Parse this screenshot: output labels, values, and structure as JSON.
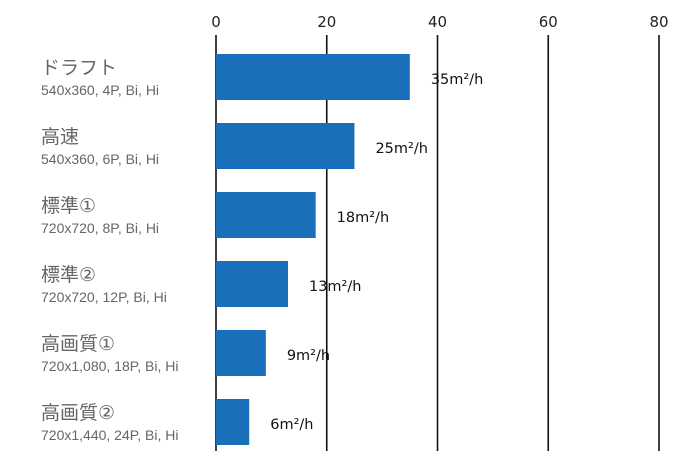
{
  "chart_data": {
    "type": "bar",
    "orientation": "horizontal",
    "title": "",
    "xlabel": "",
    "ylabel": "",
    "xlim": [
      0,
      80
    ],
    "ticks": [
      0,
      20,
      40,
      60,
      80
    ],
    "tick_labels": [
      "0",
      "20",
      "40",
      "60",
      "80"
    ],
    "tick_position": "top",
    "grid": true,
    "bar_color": "#1a6fba",
    "categories": [
      {
        "name": "ドラフト",
        "detail": "540x360, 4P, Bi, Hi"
      },
      {
        "name": "高速",
        "detail": "540x360, 6P, Bi, Hi"
      },
      {
        "name": "標準①",
        "detail": "720x720, 8P, Bi, Hi"
      },
      {
        "name": "標準②",
        "detail": "720x720, 12P, Bi, Hi"
      },
      {
        "name": "高画質①",
        "detail": "720x1,080, 18P, Bi, Hi"
      },
      {
        "name": "高画質②",
        "detail": "720x1,440, 24P, Bi, Hi"
      }
    ],
    "values": [
      35,
      25,
      18,
      13,
      9,
      6
    ],
    "value_labels": [
      "35m²/h",
      "25m²/h",
      "18m²/h",
      "13m²/h",
      "9m²/h",
      "6m²/h"
    ]
  }
}
